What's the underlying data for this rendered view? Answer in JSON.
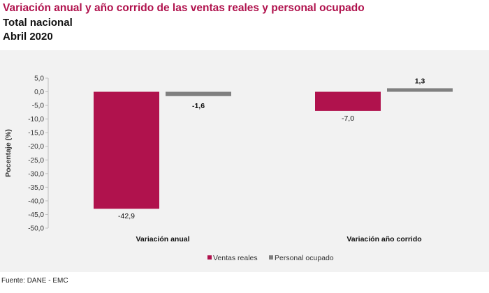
{
  "header": {
    "title": "Variación anual y año corrido de las ventas reales y personal ocupado",
    "subtitle1": "Total nacional",
    "subtitle2": "Abril 2020"
  },
  "footer": {
    "source": "Fuente: DANE - EMC"
  },
  "chart_data": {
    "type": "bar",
    "title": "",
    "xlabel": "",
    "ylabel": "Pocentaje (%)",
    "ylim": [
      -50,
      5
    ],
    "yticks": [
      5,
      0,
      -5,
      -10,
      -15,
      -20,
      -25,
      -30,
      -35,
      -40,
      -45,
      -50
    ],
    "grid": false,
    "legend": "bottom-center",
    "categories": [
      "Variación anual",
      "Variación año corrido"
    ],
    "series": [
      {
        "name": "Ventas reales",
        "color": "#b0124d",
        "values": [
          -42.9,
          -7.0
        ]
      },
      {
        "name": "Personal ocupado",
        "color": "#808080",
        "values": [
          -1.6,
          1.3
        ]
      }
    ]
  }
}
